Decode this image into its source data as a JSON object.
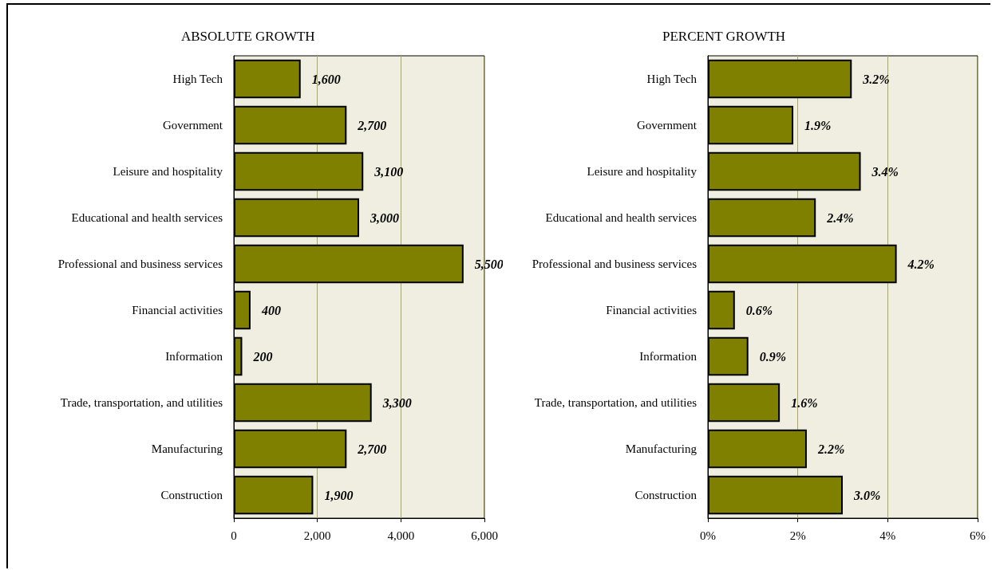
{
  "chart_data": [
    {
      "type": "bar",
      "orientation": "horizontal",
      "title": "ABSOLUTE GROWTH",
      "categories": [
        "High Tech",
        "Government",
        "Leisure and hospitality",
        "Educational and health services",
        "Professional and business services",
        "Financial activities",
        "Information",
        "Trade, transportation, and utilities",
        "Manufacturing",
        "Construction"
      ],
      "values": [
        1600,
        2700,
        3100,
        3000,
        5500,
        400,
        200,
        3300,
        2700,
        1900
      ],
      "value_labels": [
        "1,600",
        "2,700",
        "3,100",
        "3,000",
        "5,500",
        "400",
        "200",
        "3,300",
        "2,700",
        "1,900"
      ],
      "color": "#808000",
      "xlim": [
        0,
        6000
      ],
      "xticks": [
        0,
        {
          "value": 2000,
          "label": "2,000"
        },
        {
          "value": 4000,
          "label": "4,000"
        },
        {
          "value": 6000,
          "label": "6,000"
        }
      ],
      "grid": "x"
    },
    {
      "type": "bar",
      "orientation": "horizontal",
      "title": "PERCENT GROWTH",
      "categories": [
        "High Tech",
        "Government",
        "Leisure and hospitality",
        "Educational and health services",
        "Professional and business services",
        "Financial activities",
        "Information",
        "Trade, transportation, and utilities",
        "Manufacturing",
        "Construction"
      ],
      "values": [
        3.2,
        1.9,
        3.4,
        2.4,
        4.2,
        0.6,
        0.9,
        1.6,
        2.2,
        3.0
      ],
      "value_labels": [
        "3.2%",
        "1.9%",
        "3.4%",
        "2.4%",
        "4.2%",
        "0.6%",
        "0.9%",
        "1.6%",
        "2.2%",
        "3.0%"
      ],
      "color": "#808000",
      "xlim": [
        0,
        6
      ],
      "xticks": [
        {
          "value": 0,
          "label": "0%"
        },
        {
          "value": 2,
          "label": "2%"
        },
        {
          "value": 4,
          "label": "4%"
        },
        {
          "value": 6,
          "label": "6%"
        }
      ],
      "grid": "x"
    }
  ]
}
